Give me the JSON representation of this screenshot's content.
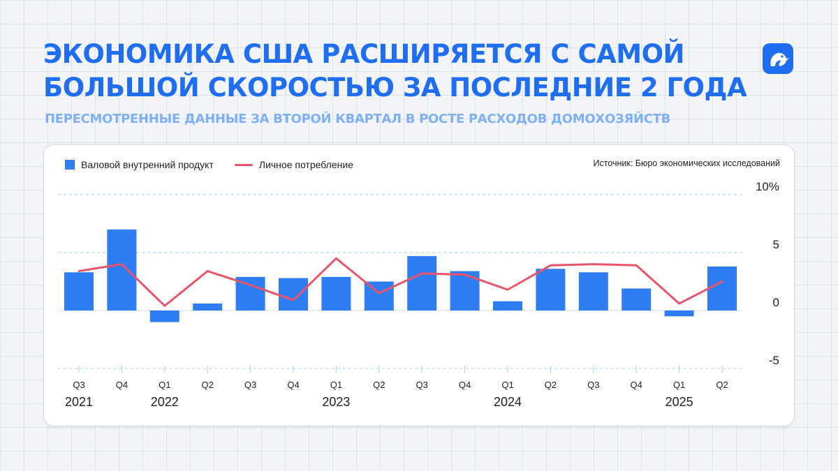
{
  "header": {
    "title": "Экономика США расширяется с самой большой скоростью за последние 2 года",
    "subtitle": "Пересмотренные данные за второй квартал в росте расходов домохозяйств"
  },
  "logo": {
    "icon": "bird-logo-icon"
  },
  "legend": {
    "gdp_label": "Валовой внутренний продукт",
    "consumption_label": "Личное потребление"
  },
  "source": "Источник: Бюро экономических исследований",
  "colors": {
    "title": "#1f6ef2",
    "subtitle": "#7fb0f6",
    "bars": "#2f7df4",
    "line": "#e8546a",
    "gridline": "#a9d0f5"
  },
  "chart_data": {
    "type": "bar",
    "categories": [
      "Q3",
      "Q4",
      "Q1",
      "Q2",
      "Q3",
      "Q4",
      "Q1",
      "Q2",
      "Q3",
      "Q4",
      "Q1",
      "Q2",
      "Q3",
      "Q4",
      "Q1",
      "Q2"
    ],
    "years": [
      {
        "label": "2021",
        "index": 0
      },
      {
        "label": "2022",
        "index": 2
      },
      {
        "label": "2023",
        "index": 6
      },
      {
        "label": "2024",
        "index": 10
      },
      {
        "label": "2025",
        "index": 14
      }
    ],
    "series": [
      {
        "name": "Валовой внутренний продукт",
        "type": "bar",
        "values": [
          3.3,
          7.0,
          -1.0,
          0.6,
          2.9,
          2.8,
          2.9,
          2.5,
          4.7,
          3.4,
          0.8,
          3.6,
          3.3,
          1.9,
          -0.5,
          3.8
        ]
      },
      {
        "name": "Личное потребление",
        "type": "line",
        "values": [
          3.4,
          4.0,
          0.4,
          3.4,
          2.2,
          0.9,
          4.5,
          1.5,
          3.2,
          3.1,
          1.8,
          3.9,
          4.0,
          3.9,
          0.6,
          2.5
        ]
      }
    ],
    "ylim": [
      -5,
      10
    ],
    "yticks": [
      {
        "value": 10,
        "label": "10%"
      },
      {
        "value": 5,
        "label": "5"
      },
      {
        "value": 0,
        "label": "0"
      },
      {
        "value": -5,
        "label": "-5"
      }
    ],
    "grid": "dashed horizontal",
    "legend_position": "top-left"
  }
}
